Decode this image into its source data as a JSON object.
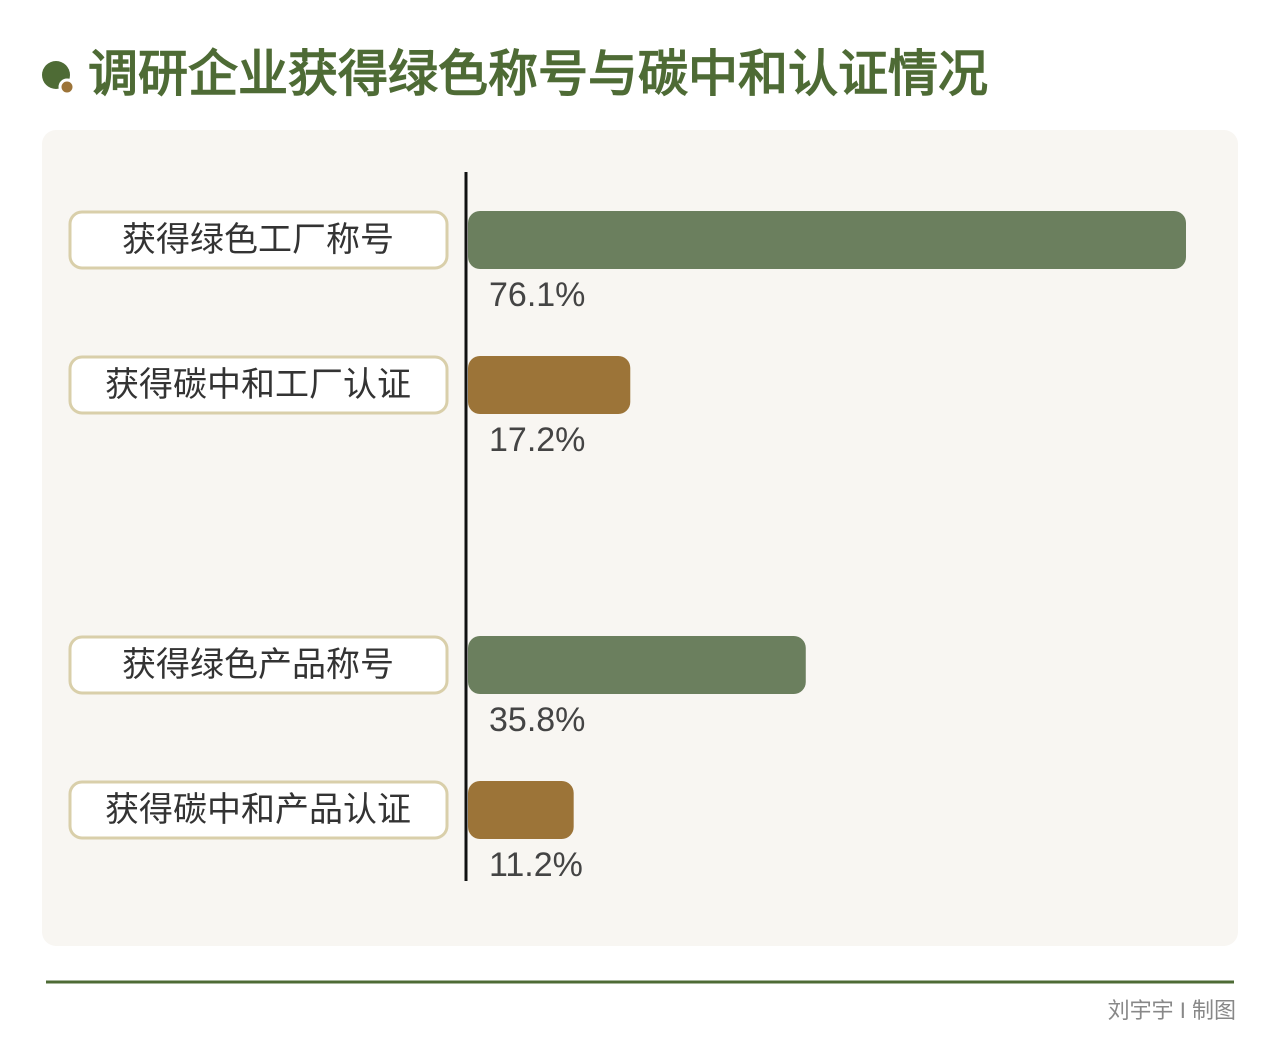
{
  "chart_data": {
    "type": "bar",
    "title": "调研企业获得绿色称号与碳中和认证情况",
    "categories": [
      "获得绿色工厂称号",
      "获得碳中和工厂认证",
      "获得绿色产品称号",
      "获得碳中和产品认证"
    ],
    "values": [
      76.1,
      17.2,
      35.8,
      11.2
    ],
    "value_labels": [
      "76.1%",
      "17.2%",
      "35.8%",
      "11.2%"
    ],
    "colors": [
      "#6b7f5e",
      "#9c7438",
      "#6b7f5e",
      "#9c7438"
    ]
  },
  "credit": "刘宇宇 I 制图"
}
